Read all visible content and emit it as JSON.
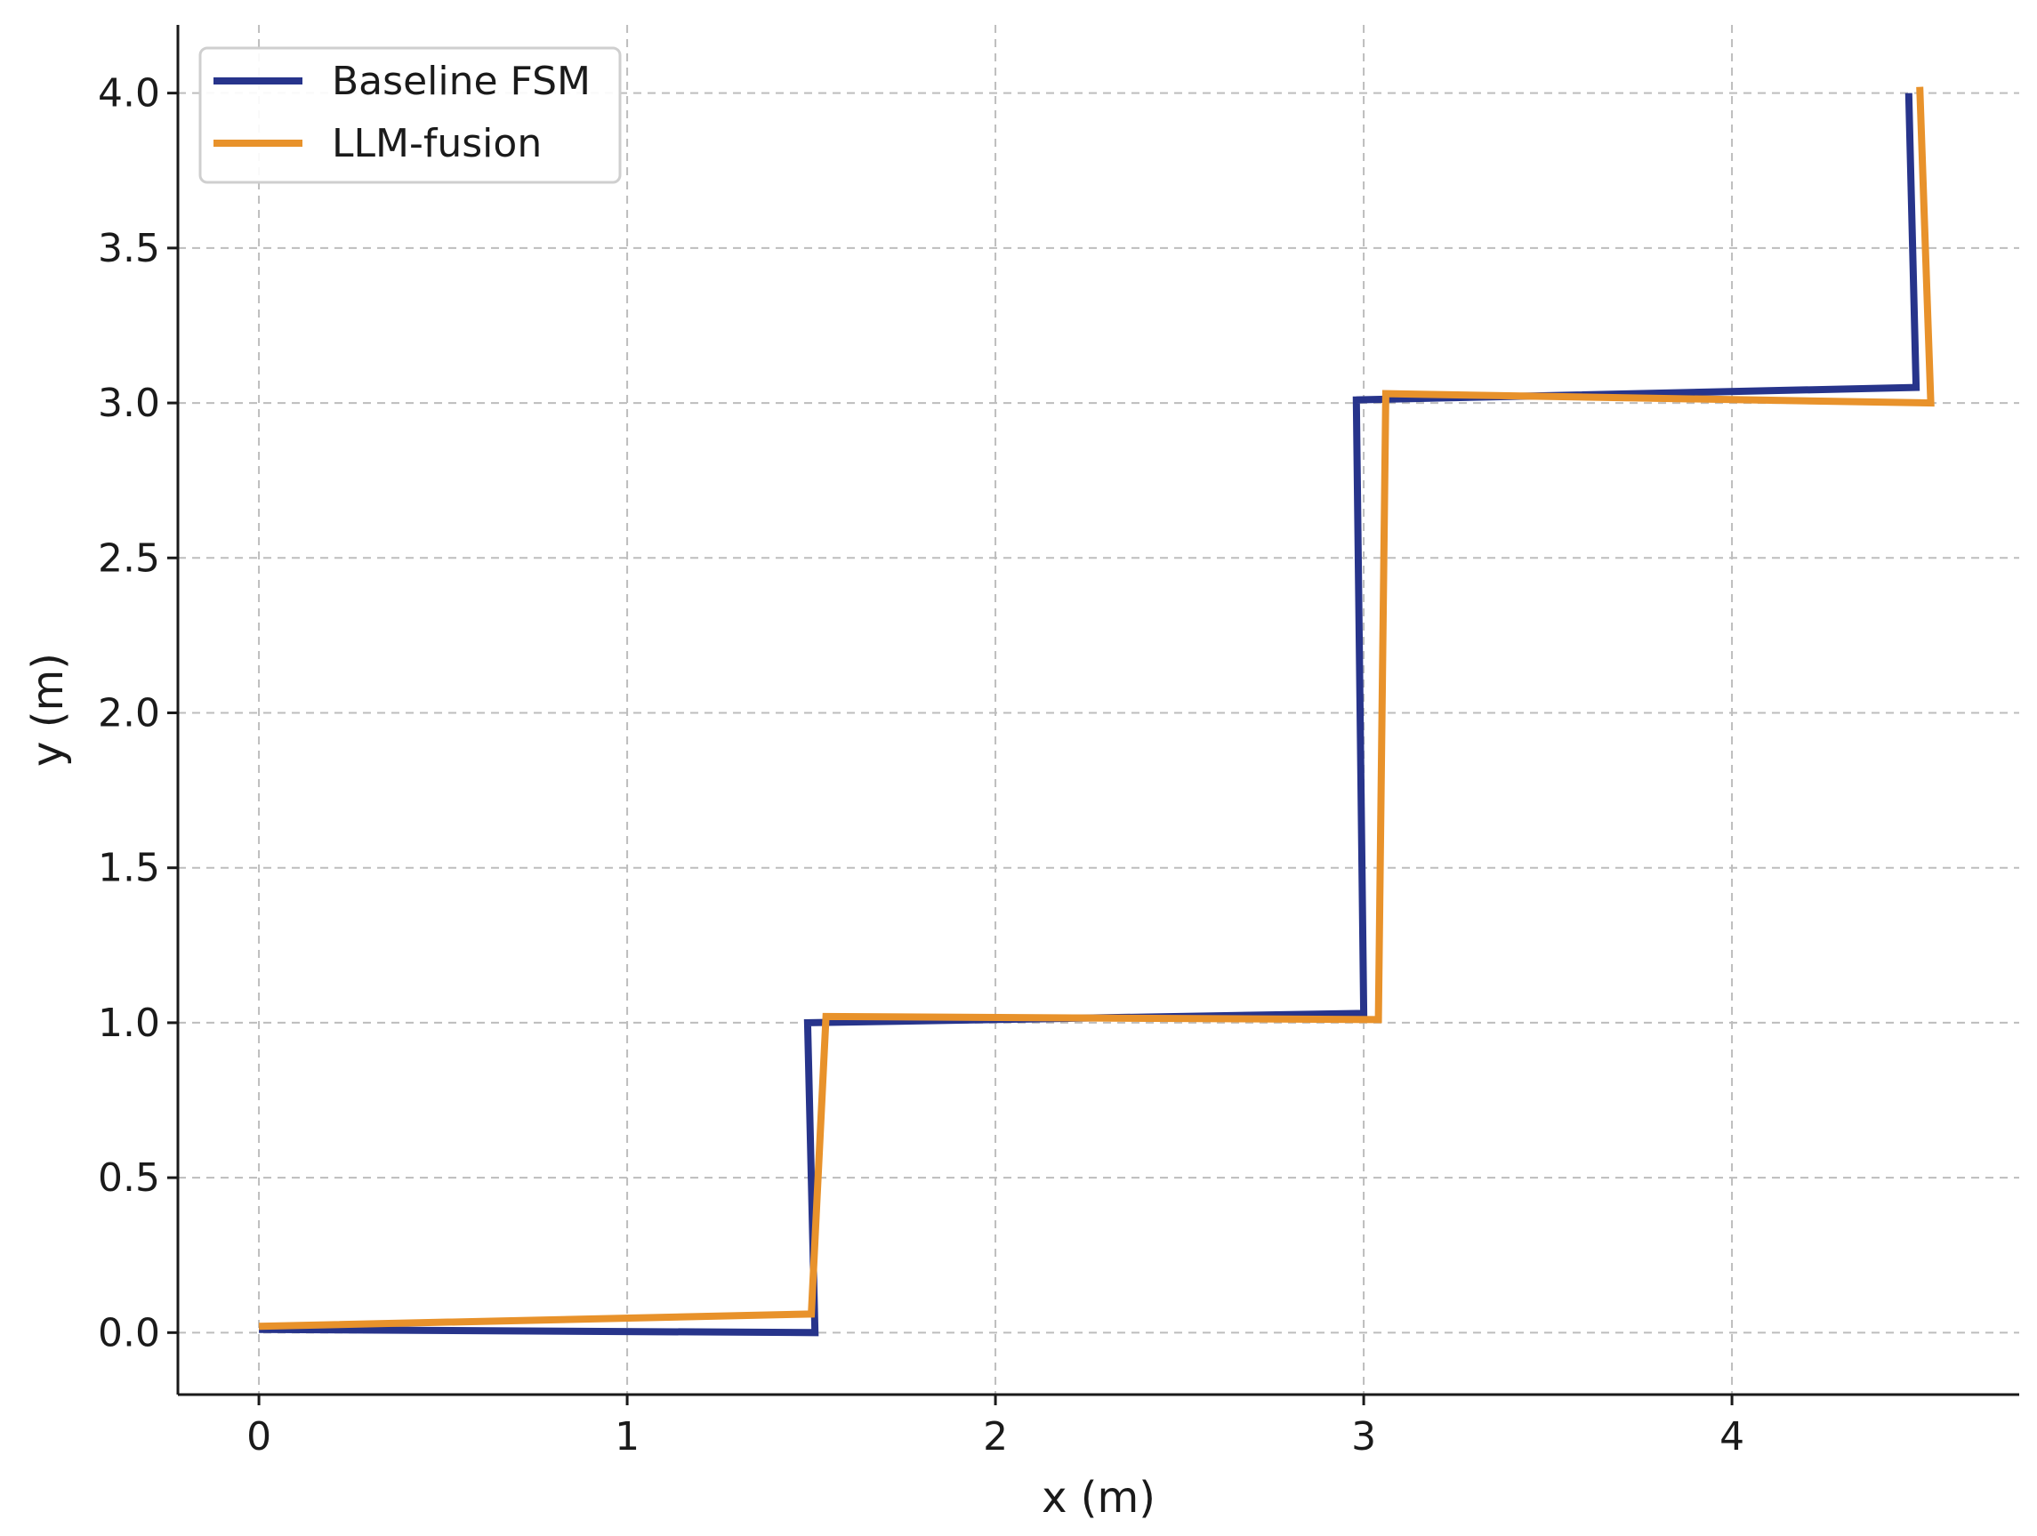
{
  "chart_data": {
    "type": "line",
    "title": "",
    "xlabel": "x (m)",
    "ylabel": "y (m)",
    "xlim": [
      -0.22,
      4.78
    ],
    "ylim": [
      -0.2,
      4.22
    ],
    "xticks": [
      0,
      1,
      2,
      3,
      4
    ],
    "xtick_labels": [
      "0",
      "1",
      "2",
      "3",
      "4"
    ],
    "yticks": [
      0.0,
      0.5,
      1.0,
      1.5,
      2.0,
      2.5,
      3.0,
      3.5,
      4.0
    ],
    "ytick_labels": [
      "0.0",
      "0.5",
      "1.0",
      "1.5",
      "2.0",
      "2.5",
      "3.0",
      "3.5",
      "4.0"
    ],
    "grid": true,
    "legend_position": "top-left",
    "series": [
      {
        "name": "Baseline FSM",
        "color": "#27348b",
        "x": [
          0.0,
          1.51,
          1.49,
          3.0,
          2.98,
          4.5,
          4.48
        ],
        "y": [
          0.01,
          0.0,
          1.0,
          1.03,
          3.01,
          3.05,
          4.0
        ]
      },
      {
        "name": "LLM-fusion",
        "color": "#e8922b",
        "x": [
          0.0,
          1.5,
          1.54,
          3.04,
          3.06,
          4.54,
          4.51
        ],
        "y": [
          0.02,
          0.06,
          1.02,
          1.01,
          3.03,
          3.0,
          4.02
        ]
      }
    ]
  }
}
